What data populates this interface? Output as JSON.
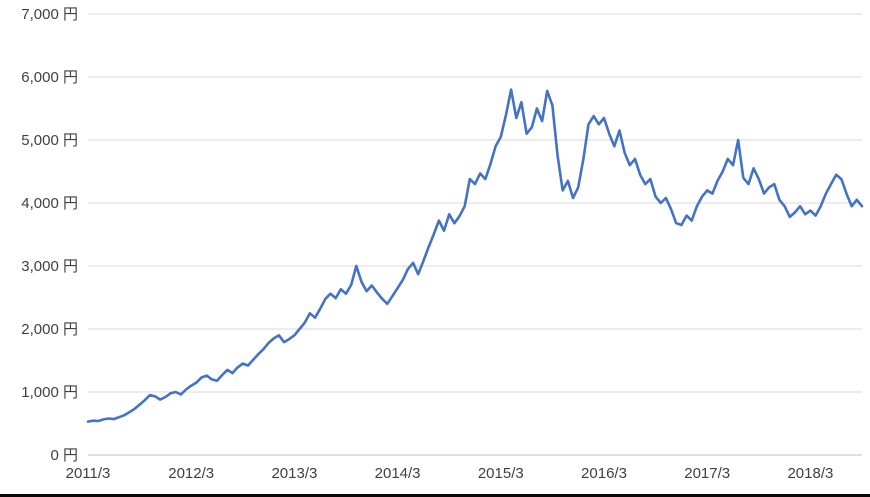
{
  "chart_data": {
    "type": "line",
    "title": "",
    "xlabel": "",
    "ylabel": "",
    "ylim": [
      0,
      7000
    ],
    "grid": "horizontal",
    "legend": "none",
    "background_color": "#FFFFFF",
    "line_color": "#4472C4",
    "gridline_color": "#D9D9D9",
    "axis_line_color": "#BFBFBF",
    "label_color": "#404040",
    "y_ticks": [
      {
        "value": 0,
        "label": "0 円"
      },
      {
        "value": 1000,
        "label": "1,000 円"
      },
      {
        "value": 2000,
        "label": "2,000 円"
      },
      {
        "value": 3000,
        "label": "3,000 円"
      },
      {
        "value": 4000,
        "label": "4,000 円"
      },
      {
        "value": 5000,
        "label": "5,000 円"
      },
      {
        "value": 6000,
        "label": "6,000 円"
      },
      {
        "value": 7000,
        "label": "7,000 円"
      }
    ],
    "x_ticks": [
      {
        "index": 0,
        "label": "2011/3"
      },
      {
        "index": 20,
        "label": "2012/3"
      },
      {
        "index": 40,
        "label": "2013/3"
      },
      {
        "index": 60,
        "label": "2014/3"
      },
      {
        "index": 80,
        "label": "2015/3"
      },
      {
        "index": 100,
        "label": "2016/3"
      },
      {
        "index": 120,
        "label": "2017/3"
      },
      {
        "index": 140,
        "label": "2018/3"
      }
    ],
    "points_per_year": 20,
    "values": [
      530,
      545,
      540,
      565,
      580,
      570,
      600,
      630,
      680,
      730,
      800,
      870,
      950,
      930,
      880,
      920,
      980,
      1000,
      960,
      1040,
      1100,
      1150,
      1230,
      1260,
      1200,
      1180,
      1270,
      1350,
      1300,
      1390,
      1450,
      1420,
      1510,
      1600,
      1680,
      1780,
      1850,
      1900,
      1790,
      1840,
      1900,
      2000,
      2100,
      2250,
      2180,
      2320,
      2480,
      2560,
      2490,
      2630,
      2560,
      2700,
      3000,
      2750,
      2600,
      2690,
      2580,
      2480,
      2400,
      2520,
      2650,
      2780,
      2950,
      3050,
      2870,
      3080,
      3300,
      3500,
      3720,
      3560,
      3820,
      3680,
      3790,
      3950,
      4380,
      4300,
      4470,
      4380,
      4620,
      4900,
      5050,
      5400,
      5800,
      5350,
      5600,
      5100,
      5200,
      5500,
      5300,
      5780,
      5550,
      4750,
      4200,
      4350,
      4080,
      4250,
      4700,
      5250,
      5380,
      5250,
      5350,
      5100,
      4900,
      5150,
      4800,
      4600,
      4700,
      4450,
      4300,
      4380,
      4100,
      4000,
      4080,
      3900,
      3680,
      3650,
      3800,
      3720,
      3950,
      4100,
      4200,
      4150,
      4350,
      4500,
      4700,
      4600,
      5000,
      4400,
      4300,
      4550,
      4380,
      4150,
      4250,
      4300,
      4050,
      3950,
      3780,
      3850,
      3950,
      3820,
      3880,
      3800,
      3950,
      4150,
      4300,
      4450,
      4380,
      4150,
      3950,
      4050,
      3950
    ]
  }
}
